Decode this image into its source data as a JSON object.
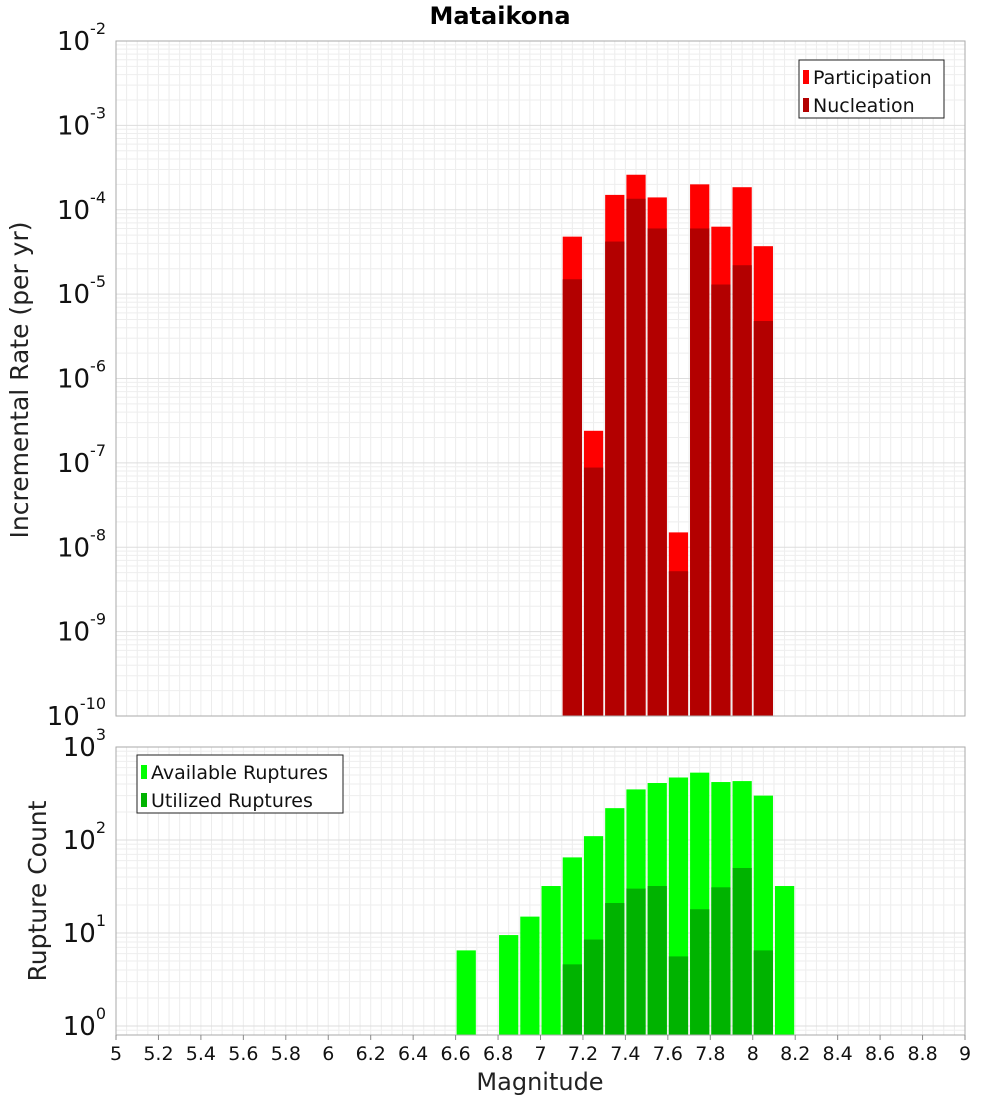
{
  "chart_data": [
    {
      "type": "bar",
      "title": "Mataikona",
      "xlabel": "",
      "ylabel": "Incremental Rate (per yr)",
      "yscale": "log",
      "ylim": [
        1e-10,
        0.01
      ],
      "xlim": [
        5,
        9
      ],
      "bar_width": 0.1,
      "ytick_base": "10",
      "ytick_exponents": [
        "-10",
        "-9",
        "-8",
        "-7",
        "-6",
        "-5",
        "-4",
        "-3",
        "-2"
      ],
      "grid": true,
      "legend_position": "top-right",
      "x": [
        7.15,
        7.25,
        7.35,
        7.45,
        7.55,
        7.65,
        7.75,
        7.85,
        7.95,
        8.05
      ],
      "series": [
        {
          "name": "Participation",
          "color": "#ff0000",
          "values": [
            4.8e-05,
            2.4e-07,
            0.00015,
            0.00026,
            0.00014,
            1.5e-08,
            0.0002,
            6.3e-05,
            0.000185,
            3.7e-05
          ]
        },
        {
          "name": "Nucleation",
          "color": "#b30000",
          "values": [
            1.5e-05,
            8.8e-08,
            4.2e-05,
            0.000135,
            6e-05,
            5.2e-09,
            6e-05,
            1.3e-05,
            2.2e-05,
            4.8e-06
          ]
        }
      ]
    },
    {
      "type": "bar",
      "title": "",
      "xlabel": "Magnitude",
      "ylabel": "Rupture Count",
      "yscale": "log",
      "ylim": [
        0.8,
        1000
      ],
      "xlim": [
        5,
        9
      ],
      "bar_width": 0.1,
      "ytick_base": "10",
      "ytick_exponents": [
        "0",
        "1",
        "2",
        "3"
      ],
      "xticks": [
        "5",
        "5.2",
        "5.4",
        "5.6",
        "5.8",
        "6",
        "6.2",
        "6.4",
        "6.6",
        "6.8",
        "7",
        "7.2",
        "7.4",
        "7.6",
        "7.8",
        "8",
        "8.2",
        "8.4",
        "8.6",
        "8.8",
        "9"
      ],
      "grid": true,
      "legend_position": "top-left",
      "x": [
        6.65,
        6.75,
        6.85,
        6.95,
        7.05,
        7.15,
        7.25,
        7.35,
        7.45,
        7.55,
        7.65,
        7.75,
        7.85,
        7.95,
        8.05,
        8.15
      ],
      "series": [
        {
          "name": "Available Ruptures",
          "color": "#00ff00",
          "values": [
            6.5,
            0,
            9.5,
            15,
            32,
            65,
            110,
            220,
            350,
            410,
            470,
            530,
            420,
            430,
            300,
            32
          ]
        },
        {
          "name": "Utilized Ruptures",
          "color": "#00b300",
          "values": [
            0,
            0,
            0,
            0,
            0,
            4.6,
            8.5,
            21,
            30,
            32,
            5.6,
            18,
            31,
            50,
            6.5,
            0
          ]
        }
      ]
    }
  ]
}
